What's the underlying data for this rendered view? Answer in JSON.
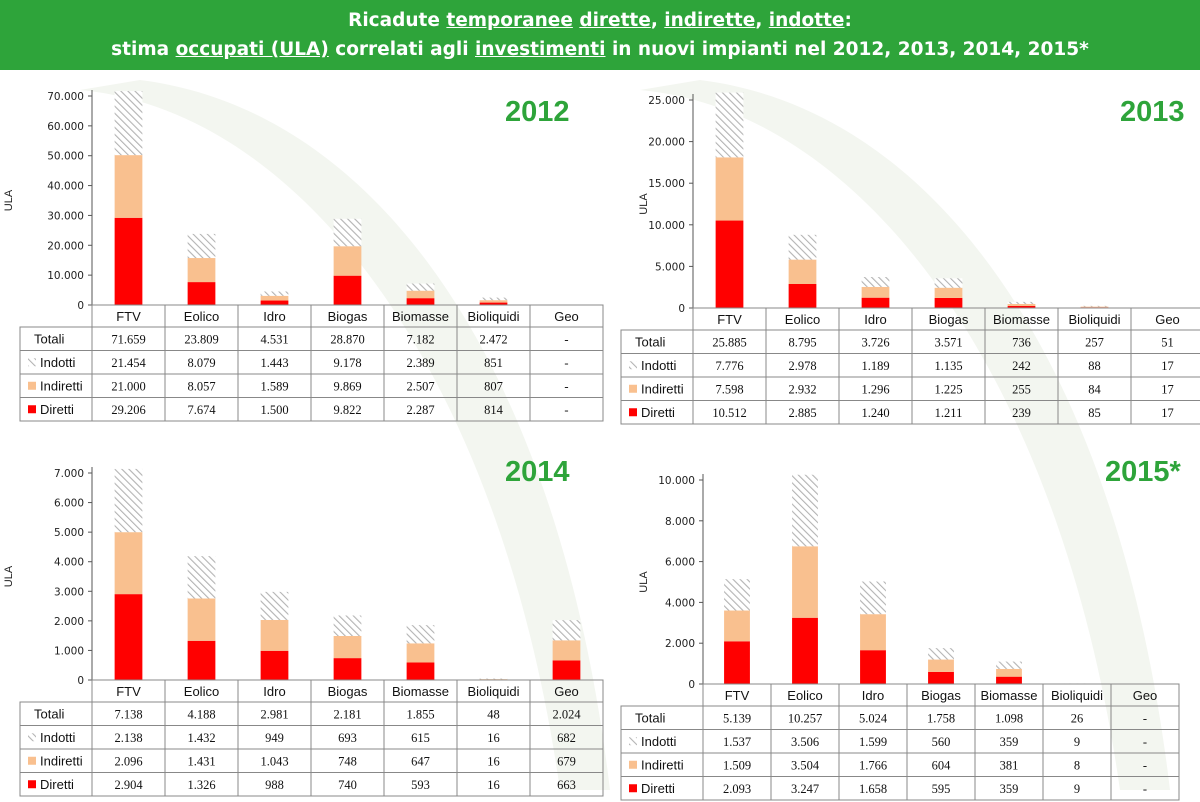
{
  "header": {
    "line1": [
      {
        "t": "Ricadute ",
        "u": false
      },
      {
        "t": "temporanee",
        "u": true
      },
      {
        "t": " ",
        "u": false
      },
      {
        "t": "dirette",
        "u": true
      },
      {
        "t": ", ",
        "u": false
      },
      {
        "t": "indirette",
        "u": true
      },
      {
        "t": ", ",
        "u": false
      },
      {
        "t": "indotte",
        "u": true
      },
      {
        "t": ":",
        "u": false
      }
    ],
    "line2": [
      {
        "t": "stima ",
        "u": false
      },
      {
        "t": "occupati (ULA)",
        "u": true
      },
      {
        "t": " correlati agli ",
        "u": false
      },
      {
        "t": "investimenti",
        "u": true
      },
      {
        "t": " in nuovi impianti nel 2012, 2013, 2014, 2015*",
        "u": false
      }
    ]
  },
  "colors": {
    "header_bg": "#2ea43a",
    "year_label": "#2ea43a",
    "diretti": "#ff0000",
    "indiretti": "#f9c08f",
    "indotti_hatch": "#b3b3b3"
  },
  "chart_data": [
    {
      "type": "bar",
      "stacked": true,
      "title": "2012",
      "ylabel": "ULA",
      "ylim": [
        0,
        70000
      ],
      "yticks": [
        0,
        10000,
        20000,
        30000,
        40000,
        50000,
        60000,
        70000
      ],
      "ytick_labels": [
        "0",
        "10.000",
        "20.000",
        "30.000",
        "40.000",
        "50.000",
        "60.000",
        "70.000"
      ],
      "categories": [
        "FTV",
        "Eolico",
        "Idro",
        "Biogas",
        "Biomasse",
        "Bioliquidi",
        "Geo"
      ],
      "series": [
        {
          "name": "Diretti",
          "values": [
            29206,
            7674,
            1500,
            9822,
            2287,
            814,
            0
          ]
        },
        {
          "name": "Indiretti",
          "values": [
            21000,
            8057,
            1589,
            9869,
            2507,
            807,
            0
          ]
        },
        {
          "name": "Indotti",
          "values": [
            21454,
            8079,
            1443,
            9178,
            2389,
            851,
            0
          ]
        }
      ],
      "table": {
        "rows": [
          {
            "label": "Totali",
            "cells": [
              "71.659",
              "23.809",
              "4.531",
              "28.870",
              "7.182",
              "2.472",
              "-"
            ]
          },
          {
            "label": "Indotti",
            "cells": [
              "21.454",
              "8.079",
              "1.443",
              "9.178",
              "2.389",
              "851",
              "-"
            ]
          },
          {
            "label": "Indiretti",
            "cells": [
              "21.000",
              "8.057",
              "1.589",
              "9.869",
              "2.507",
              "807",
              "-"
            ]
          },
          {
            "label": "Diretti",
            "cells": [
              "29.206",
              "7.674",
              "1.500",
              "9.822",
              "2.287",
              "814",
              "-"
            ]
          }
        ]
      }
    },
    {
      "type": "bar",
      "stacked": true,
      "title": "2013",
      "ylabel": "ULA",
      "ylim": [
        0,
        25000
      ],
      "yticks": [
        0,
        5000,
        10000,
        15000,
        20000,
        25000
      ],
      "ytick_labels": [
        "0",
        "5.000",
        "10.000",
        "15.000",
        "20.000",
        "25.000"
      ],
      "categories": [
        "FTV",
        "Eolico",
        "Idro",
        "Biogas",
        "Biomasse",
        "Bioliquidi",
        "Geo"
      ],
      "series": [
        {
          "name": "Diretti",
          "values": [
            10512,
            2885,
            1240,
            1211,
            239,
            85,
            17
          ]
        },
        {
          "name": "Indiretti",
          "values": [
            7598,
            2932,
            1296,
            1225,
            255,
            84,
            17
          ]
        },
        {
          "name": "Indotti",
          "values": [
            7776,
            2978,
            1189,
            1135,
            242,
            88,
            17
          ]
        }
      ],
      "table": {
        "rows": [
          {
            "label": "Totali",
            "cells": [
              "25.885",
              "8.795",
              "3.726",
              "3.571",
              "736",
              "257",
              "51"
            ]
          },
          {
            "label": "Indotti",
            "cells": [
              "7.776",
              "2.978",
              "1.189",
              "1.135",
              "242",
              "88",
              "17"
            ]
          },
          {
            "label": "Indiretti",
            "cells": [
              "7.598",
              "2.932",
              "1.296",
              "1.225",
              "255",
              "84",
              "17"
            ]
          },
          {
            "label": "Diretti",
            "cells": [
              "10.512",
              "2.885",
              "1.240",
              "1.211",
              "239",
              "85",
              "17"
            ]
          }
        ]
      }
    },
    {
      "type": "bar",
      "stacked": true,
      "title": "2014",
      "ylabel": "ULA",
      "ylim": [
        0,
        7000
      ],
      "yticks": [
        0,
        1000,
        2000,
        3000,
        4000,
        5000,
        6000,
        7000
      ],
      "ytick_labels": [
        "0",
        "1.000",
        "2.000",
        "3.000",
        "4.000",
        "5.000",
        "6.000",
        "7.000"
      ],
      "categories": [
        "FTV",
        "Eolico",
        "Idro",
        "Biogas",
        "Biomasse",
        "Bioliquidi",
        "Geo"
      ],
      "series": [
        {
          "name": "Diretti",
          "values": [
            2904,
            1326,
            988,
            740,
            593,
            16,
            663
          ]
        },
        {
          "name": "Indiretti",
          "values": [
            2096,
            1431,
            1043,
            748,
            647,
            16,
            679
          ]
        },
        {
          "name": "Indotti",
          "values": [
            2138,
            1432,
            949,
            693,
            615,
            16,
            682
          ]
        }
      ],
      "table": {
        "rows": [
          {
            "label": "Totali",
            "cells": [
              "7.138",
              "4.188",
              "2.981",
              "2.181",
              "1.855",
              "48",
              "2.024"
            ]
          },
          {
            "label": "Indotti",
            "cells": [
              "2.138",
              "1.432",
              "949",
              "693",
              "615",
              "16",
              "682"
            ]
          },
          {
            "label": "Indiretti",
            "cells": [
              "2.096",
              "1.431",
              "1.043",
              "748",
              "647",
              "16",
              "679"
            ]
          },
          {
            "label": "Diretti",
            "cells": [
              "2.904",
              "1.326",
              "988",
              "740",
              "593",
              "16",
              "663"
            ]
          }
        ]
      }
    },
    {
      "type": "bar",
      "stacked": true,
      "title": "2015*",
      "ylabel": "ULA",
      "ylim": [
        0,
        10000
      ],
      "yticks": [
        0,
        2000,
        4000,
        6000,
        8000,
        10000
      ],
      "ytick_labels": [
        "0",
        "2.000",
        "4.000",
        "6.000",
        "8.000",
        "10.000"
      ],
      "categories": [
        "FTV",
        "Eolico",
        "Idro",
        "Biogas",
        "Biomasse",
        "Bioliquidi",
        "Geo"
      ],
      "series": [
        {
          "name": "Diretti",
          "values": [
            2093,
            3247,
            1658,
            595,
            359,
            9,
            0
          ]
        },
        {
          "name": "Indiretti",
          "values": [
            1509,
            3504,
            1766,
            604,
            381,
            8,
            0
          ]
        },
        {
          "name": "Indotti",
          "values": [
            1537,
            3506,
            1599,
            560,
            359,
            9,
            0
          ]
        }
      ],
      "table": {
        "rows": [
          {
            "label": "Totali",
            "cells": [
              "5.139",
              "10.257",
              "5.024",
              "1.758",
              "1.098",
              "26",
              "-"
            ]
          },
          {
            "label": "Indotti",
            "cells": [
              "1.537",
              "3.506",
              "1.599",
              "560",
              "359",
              "9",
              "-"
            ]
          },
          {
            "label": "Indiretti",
            "cells": [
              "1.509",
              "3.504",
              "1.766",
              "604",
              "381",
              "8",
              "-"
            ]
          },
          {
            "label": "Diretti",
            "cells": [
              "2.093",
              "3.247",
              "1.658",
              "595",
              "359",
              "9",
              "-"
            ]
          }
        ]
      }
    }
  ]
}
